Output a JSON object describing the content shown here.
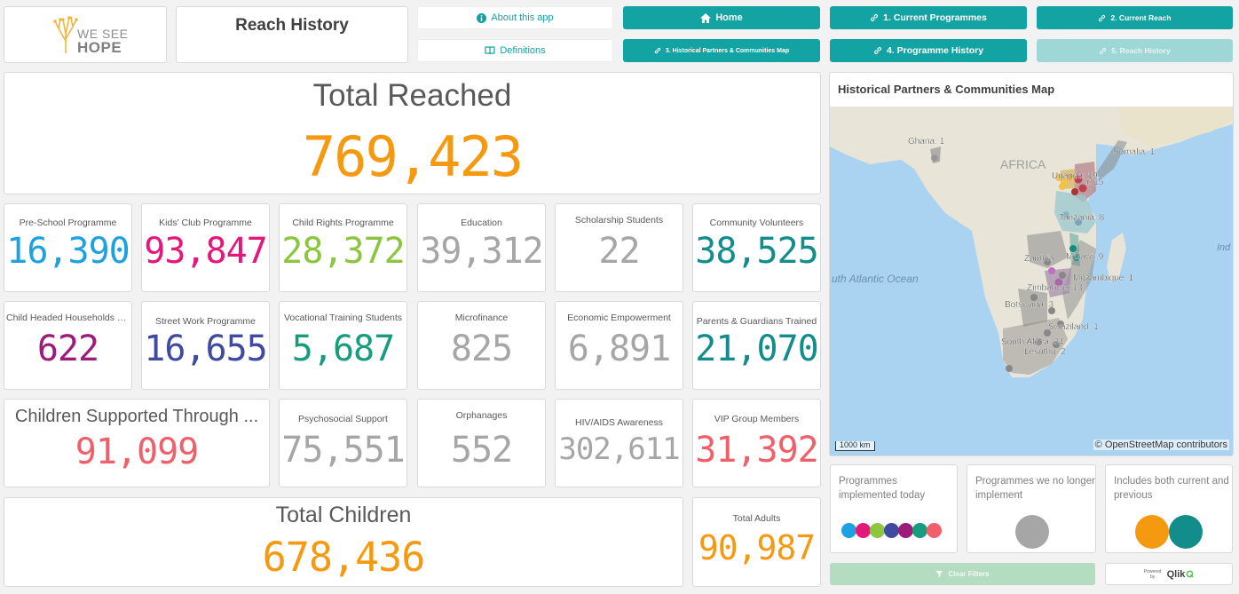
{
  "header": {
    "logo_line1": "WE SEE",
    "logo_line2": "HOPE",
    "title": "Reach History"
  },
  "nav": {
    "about": "About this app",
    "definitions": "Definitions",
    "home": "Home",
    "current_programmes": "1. Current Programmes",
    "current_reach": "2. Current Reach",
    "historical_map": "3. Historical Partners & Communities Map",
    "programme_history": "4. Programme History",
    "reach_history": "5. Reach History"
  },
  "total_reached": {
    "label": "Total Reached",
    "value": "769,423"
  },
  "kpis": [
    {
      "label": "Pre-School Programme",
      "value": "16,390",
      "color": "#1ea1e1"
    },
    {
      "label": "Kids' Club Programme",
      "value": "93,847",
      "color": "#e6177a"
    },
    {
      "label": "Child Rights Programme",
      "value": "28,372",
      "color": "#8cc63f"
    },
    {
      "label": "Education",
      "value": "39,312",
      "color": "#a6a6a6"
    },
    {
      "label": "Scholarship Students",
      "value": "22",
      "color": "#a6a6a6"
    },
    {
      "label": "Community Volunteers",
      "value": "38,525",
      "color": "#138c8c"
    },
    {
      "label": "Child Headed Households Pro...",
      "value": "622",
      "color": "#9c1b7b"
    },
    {
      "label": "Street Work Programme",
      "value": "16,655",
      "color": "#3f4aa0"
    },
    {
      "label": "Vocational Training Students",
      "value": "5,687",
      "color": "#179c7d"
    },
    {
      "label": "Microfinance",
      "value": "825",
      "color": "#a6a6a6"
    },
    {
      "label": "Economic Empowerment",
      "value": "6,891",
      "color": "#a6a6a6"
    },
    {
      "label": "Parents & Guardians Trained",
      "value": "21,070",
      "color": "#138c8c"
    },
    {
      "label": "Children Supported Through ...",
      "value": "91,099",
      "color": "#f0606a"
    },
    {
      "label": "Psychosocial Support",
      "value": "75,551",
      "color": "#a6a6a6"
    },
    {
      "label": "Orphanages",
      "value": "552",
      "color": "#a6a6a6"
    },
    {
      "label": "HIV/AIDS Awareness",
      "value": "302,611",
      "color": "#a6a6a6"
    },
    {
      "label": "VIP Group Members",
      "value": "31,392",
      "color": "#f0606a"
    }
  ],
  "total_children": {
    "label": "Total Children",
    "value": "678,436"
  },
  "total_adults": {
    "label": "Total Adults",
    "value": "90,987"
  },
  "map": {
    "title": "Historical Partners & Communities Map",
    "continent": "AFRICA",
    "ocean": "uth Atlantic Ocean",
    "ocean2": "Ind",
    "scale": "1000 km",
    "attribution": "© OpenStreetMap contributors",
    "labels": [
      "Ghana: 1",
      "Somalia: 1",
      "Uganda: 19",
      "a: 15",
      "Tanzania: 8",
      "Zambia",
      "Malawi: 9",
      "Mozambique: 1",
      "Zimbabwe: 13",
      "Botswana: 3",
      "Swaziland: 1",
      "South Africa: 34",
      "Lesotho: 2"
    ]
  },
  "legend": {
    "current": "Programmes implemented today",
    "previous": "Programmes we no longer implement",
    "both": "Includes both current and previous",
    "current_colors": [
      "#1ea1e1",
      "#e6177a",
      "#8cc63f",
      "#3f4aa0",
      "#9c1b7b",
      "#179c7d",
      "#f0606a"
    ],
    "previous_color": "#a6a6a6",
    "both_colors": [
      "#f59a10",
      "#138c8c"
    ]
  },
  "footer": {
    "clear_filters": "Clear Filters",
    "powered_by": "Powered by",
    "qlik": "Qlik"
  },
  "colors": {
    "accent": "#14a3a3",
    "orange": "#f59a10"
  }
}
